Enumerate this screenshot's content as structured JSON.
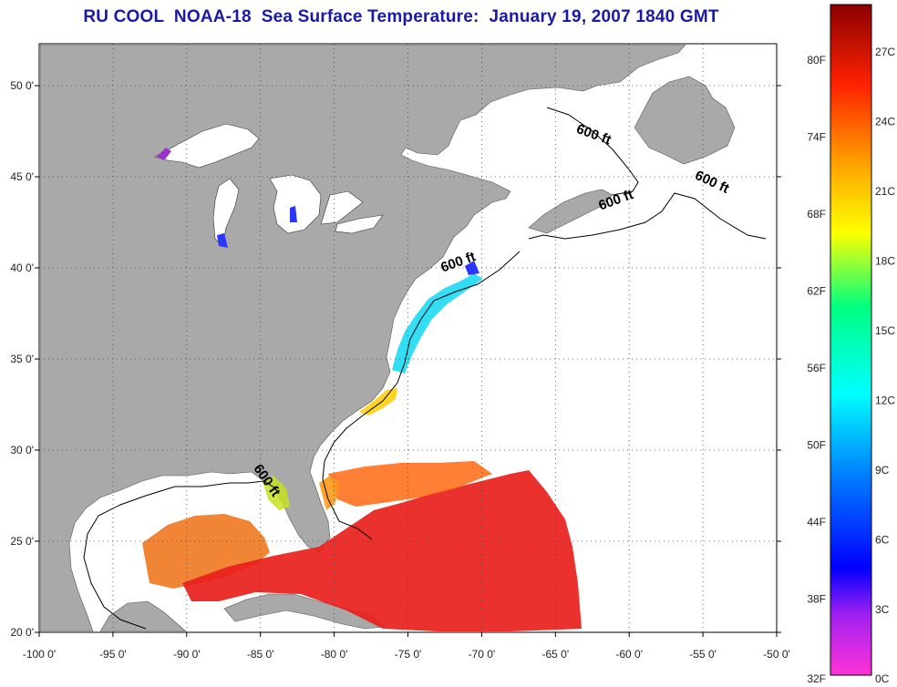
{
  "title": "RU COOL  NOAA-18  Sea Surface Temperature:  January 19, 2007 1840 GMT",
  "map": {
    "lon_range": [
      -100,
      -50
    ],
    "lat_range": [
      20,
      52.3
    ],
    "lon_ticks": [
      {
        "value": -100,
        "label": "-100 0'"
      },
      {
        "value": -95,
        "label": "-95 0'"
      },
      {
        "value": -90,
        "label": "-90 0'"
      },
      {
        "value": -85,
        "label": "-85 0'"
      },
      {
        "value": -80,
        "label": "-80 0'"
      },
      {
        "value": -75,
        "label": "-75 0'"
      },
      {
        "value": -70,
        "label": "-70 0'"
      },
      {
        "value": -65,
        "label": "-65 0'"
      },
      {
        "value": -60,
        "label": "-60 0'"
      },
      {
        "value": -55,
        "label": "-55 0'"
      },
      {
        "value": -50,
        "label": "-50 0'"
      }
    ],
    "lat_ticks": [
      {
        "value": 20,
        "label": "20 0'"
      },
      {
        "value": 25,
        "label": "25 0'"
      },
      {
        "value": 30,
        "label": "30 0'"
      },
      {
        "value": 35,
        "label": "35 0'"
      },
      {
        "value": 40,
        "label": "40 0'"
      },
      {
        "value": 45,
        "label": "45 0'"
      },
      {
        "value": 50,
        "label": "50 0'"
      }
    ],
    "grid": "dotted",
    "land_color": "#a9a9a9",
    "water_color": "#ffffff",
    "contour_labels": [
      {
        "text": "600 ft",
        "lon": -62.5,
        "lat": 47.1,
        "rotate": 20
      },
      {
        "text": "600 ft",
        "lon": -54.5,
        "lat": 44.5,
        "rotate": 25
      },
      {
        "text": "600 ft",
        "lon": -60.8,
        "lat": 43.5,
        "rotate": -20
      },
      {
        "text": "600 ft",
        "lon": -71.5,
        "lat": 40.1,
        "rotate": -20
      },
      {
        "text": "600 ft",
        "lon": -84.8,
        "lat": 28.2,
        "rotate": 55
      }
    ]
  },
  "colorbar": {
    "fahrenheit_labels": [
      "80F",
      "74F",
      "68F",
      "62F",
      "56F",
      "50F",
      "44F",
      "38F",
      "32F"
    ],
    "celsius_labels": [
      "27C",
      "24C",
      "21C",
      "18C",
      "15C",
      "12C",
      "9C",
      "6C",
      "3C",
      "0C"
    ],
    "colors": [
      "#ff33d6",
      "#8a2be2",
      "#0000ff",
      "#0080ff",
      "#00ffff",
      "#00ff80",
      "#ffff00",
      "#ff9900",
      "#ff2a00",
      "#8b0000"
    ]
  }
}
